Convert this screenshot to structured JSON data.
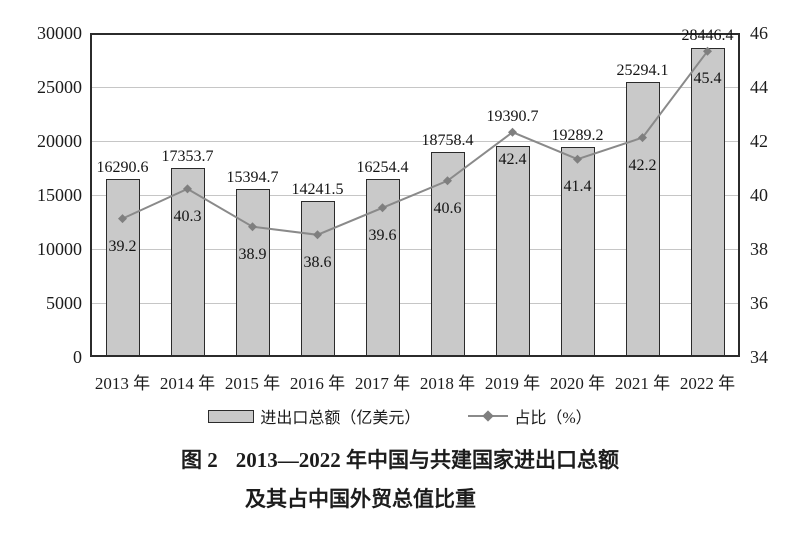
{
  "figure": {
    "caption_label": "图 2",
    "caption_line1": "2013—2022 年中国与共建国家进出口总额",
    "caption_line2": "及其占中国外贸总值比重"
  },
  "legend": {
    "bar_label": "进出口总额（亿美元）",
    "line_label": "占比（%）"
  },
  "chart_data": {
    "type": "bar",
    "title": "图 2 2013—2022 年中国与共建国家进出口总额及其占中国外贸总值比重",
    "categories": [
      "2013 年",
      "2014 年",
      "2015 年",
      "2016 年",
      "2017 年",
      "2018 年",
      "2019 年",
      "2020 年",
      "2021 年",
      "2022 年"
    ],
    "series": [
      {
        "name": "进出口总额（亿美元）",
        "type": "bar",
        "axis": "left",
        "values": [
          16290.6,
          17353.7,
          15394.7,
          14241.5,
          16254.4,
          18758.4,
          19390.7,
          19289.2,
          25294.1,
          28446.4
        ]
      },
      {
        "name": "占比（%）",
        "type": "line",
        "axis": "right",
        "values": [
          39.2,
          40.3,
          38.9,
          38.6,
          39.6,
          40.6,
          42.4,
          41.4,
          42.2,
          45.4
        ]
      }
    ],
    "left_axis": {
      "min": 0,
      "max": 30000,
      "step": 5000,
      "ticks": [
        "0",
        "5000",
        "10000",
        "15000",
        "20000",
        "25000",
        "30000"
      ]
    },
    "right_axis": {
      "min": 34,
      "max": 46,
      "step": 2,
      "ticks": [
        "34",
        "36",
        "38",
        "40",
        "42",
        "44",
        "46"
      ]
    },
    "grid": true,
    "legend_position": "bottom"
  },
  "colors": {
    "bar_fill": "#c9c9c9",
    "bar_border": "#2b2b2b",
    "line": "#8a8a8a",
    "marker": "#7f7f7f",
    "grid": "#c6c6c6",
    "text": "#1c1c1c"
  }
}
